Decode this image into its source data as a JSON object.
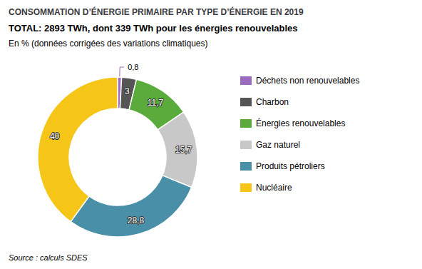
{
  "chart_data": {
    "type": "pie",
    "title": "CONSOMMATION D’ÉNERGIE PRIMAIRE PAR TYPE D’ÉNERGIE EN 2019",
    "subtitle": "TOTAL: 2893 TWh, dont 339 TWh pour les énergies renouvelables",
    "caption": "En % (données corrigées des variations climatiques)",
    "source": "Source : calculs SDES",
    "categories": [
      "Déchets non renouvelables",
      "Charbon",
      "Énergies renouvelables",
      "Gaz naturel",
      "Produits pétroliers",
      "Nucléaire"
    ],
    "values": [
      0.8,
      3.0,
      11.7,
      15.7,
      28.8,
      40.0
    ],
    "value_labels": [
      "0,8",
      "3",
      "11,7",
      "15,7",
      "28,8",
      "40"
    ],
    "colors": [
      "#9b6bbf",
      "#555555",
      "#5aaa3c",
      "#c8c8c8",
      "#4a8fa8",
      "#f5c518"
    ],
    "data_labels": true,
    "legend": "right"
  }
}
